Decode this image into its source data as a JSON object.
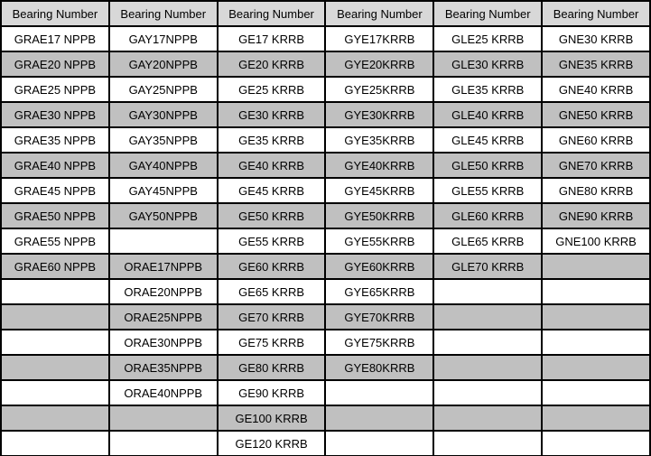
{
  "colors": {
    "border": "#000000",
    "header_bg": "#d8d8d8",
    "row_even_bg": "#ffffff",
    "row_odd_bg": "#c0c0c0",
    "text": "#000000"
  },
  "table": {
    "headers": [
      "Bearing Number",
      "Bearing Number",
      "Bearing Number",
      "Bearing Number",
      "Bearing Number",
      "Bearing Number"
    ],
    "rows": [
      [
        "GRAE17 NPPB",
        "GAY17NPPB",
        "GE17 KRRB",
        "GYE17KRRB",
        "GLE25 KRRB",
        "GNE30 KRRB"
      ],
      [
        "GRAE20 NPPB",
        "GAY20NPPB",
        "GE20 KRRB",
        "GYE20KRRB",
        "GLE30 KRRB",
        "GNE35 KRRB"
      ],
      [
        "GRAE25 NPPB",
        "GAY25NPPB",
        "GE25 KRRB",
        "GYE25KRRB",
        "GLE35 KRRB",
        "GNE40 KRRB"
      ],
      [
        "GRAE30 NPPB",
        "GAY30NPPB",
        "GE30 KRRB",
        "GYE30KRRB",
        "GLE40 KRRB",
        "GNE50 KRRB"
      ],
      [
        "GRAE35 NPPB",
        "GAY35NPPB",
        "GE35 KRRB",
        "GYE35KRRB",
        "GLE45 KRRB",
        "GNE60 KRRB"
      ],
      [
        "GRAE40 NPPB",
        "GAY40NPPB",
        "GE40 KRRB",
        "GYE40KRRB",
        "GLE50 KRRB",
        "GNE70 KRRB"
      ],
      [
        "GRAE45 NPPB",
        "GAY45NPPB",
        "GE45 KRRB",
        "GYE45KRRB",
        "GLE55 KRRB",
        "GNE80 KRRB"
      ],
      [
        "GRAE50 NPPB",
        "GAY50NPPB",
        "GE50 KRRB",
        "GYE50KRRB",
        "GLE60 KRRB",
        "GNE90 KRRB"
      ],
      [
        "GRAE55 NPPB",
        "",
        "GE55 KRRB",
        "GYE55KRRB",
        "GLE65 KRRB",
        "GNE100 KRRB"
      ],
      [
        "GRAE60 NPPB",
        "ORAE17NPPB",
        "GE60 KRRB",
        "GYE60KRRB",
        "GLE70 KRRB",
        ""
      ],
      [
        "",
        "ORAE20NPPB",
        "GE65 KRRB",
        "GYE65KRRB",
        "",
        ""
      ],
      [
        "",
        "ORAE25NPPB",
        "GE70 KRRB",
        "GYE70KRRB",
        "",
        ""
      ],
      [
        "",
        "ORAE30NPPB",
        "GE75 KRRB",
        "GYE75KRRB",
        "",
        ""
      ],
      [
        "",
        "ORAE35NPPB",
        "GE80 KRRB",
        "GYE80KRRB",
        "",
        ""
      ],
      [
        "",
        "ORAE40NPPB",
        "GE90 KRRB",
        "",
        "",
        ""
      ],
      [
        "",
        "",
        "GE100 KRRB",
        "",
        "",
        ""
      ],
      [
        "",
        "",
        "GE120 KRRB",
        "",
        "",
        ""
      ]
    ]
  }
}
